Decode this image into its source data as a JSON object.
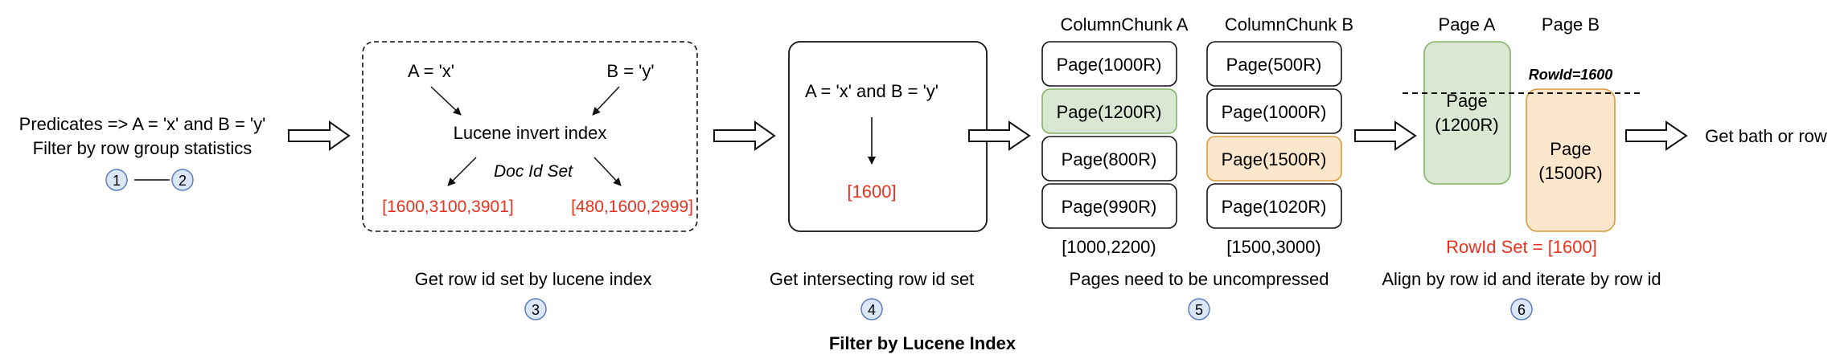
{
  "diagram": {
    "title": "Filter by Lucene Index",
    "colors": {
      "red": "#e8321f",
      "green_fill": "#dae8d3",
      "green_stroke": "#82b366",
      "orange_fill": "#fce6cc",
      "orange_stroke": "#d79b3e",
      "circle_fill": "#dbe6f7",
      "circle_stroke": "#5b7dbf"
    },
    "step1": {
      "line1": "Predicates => A = 'x' and B = 'y'",
      "line2": "Filter by row group statistics",
      "badges": [
        "1",
        "2"
      ]
    },
    "step3": {
      "pred_a": "A = 'x'",
      "pred_b": "B = 'y'",
      "index_label": "Lucene invert index",
      "doc_id_label": "Doc Id Set",
      "set_a": "[1600,3100,3901]",
      "set_b": "[480,1600,2999]",
      "caption": "Get row id set by lucene index",
      "badge": "3"
    },
    "step4": {
      "expr": "A = 'x' and B = 'y'",
      "result": "[1600]",
      "caption": "Get intersecting row id set",
      "badge": "4"
    },
    "step5": {
      "chunk_a": {
        "title": "ColumnChunk A",
        "pages": [
          "Page(1000R)",
          "Page(1200R)",
          "Page(800R)",
          "Page(990R)"
        ],
        "range": "[1000,2200)"
      },
      "chunk_b": {
        "title": "ColumnChunk B",
        "pages": [
          "Page(500R)",
          "Page(1000R)",
          "Page(1500R)",
          "Page(1020R)"
        ],
        "range": "[1500,3000)"
      },
      "caption": "Pages need to be uncompressed",
      "badge": "5"
    },
    "step6": {
      "page_a_title": "Page A",
      "page_b_title": "Page B",
      "page_a_line1": "Page",
      "page_a_line2": "(1200R)",
      "page_b_line1": "Page",
      "page_b_line2": "(1500R)",
      "rowid_label": "RowId=1600",
      "rowid_set": "RowId Set = [1600]",
      "caption": "Align by row id and iterate by row id",
      "badge": "6"
    },
    "final_label": "Get bath or row"
  }
}
